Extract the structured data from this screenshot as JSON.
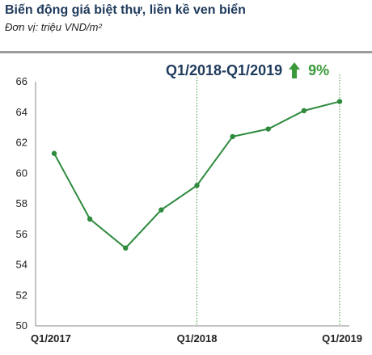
{
  "header": {
    "title": "Biến động giá biệt thự, liền kề ven biển",
    "subtitle": "Đơn vị: triệu VND/m²"
  },
  "highlight": {
    "period": "Q1/2018-Q1/2019",
    "change": "9%",
    "icon": "up-arrow-icon",
    "color": "#3a9a3a"
  },
  "chart_data": {
    "type": "line",
    "title": "Biến động giá biệt thự, liền kề ven biển",
    "ylabel": "",
    "xlabel": "",
    "ylim": [
      50,
      66
    ],
    "yticks": [
      50,
      52,
      54,
      56,
      58,
      60,
      62,
      64,
      66
    ],
    "x_tick_labels": [
      "Q1/2017",
      "Q1/2018",
      "Q1/2019"
    ],
    "x_tick_indices": [
      0,
      4,
      8
    ],
    "reference_lines_at": [
      4,
      8
    ],
    "grid": false,
    "series": [
      {
        "color": "#2e8b3e",
        "values": [
          61.3,
          57.0,
          55.1,
          57.6,
          59.2,
          62.4,
          62.9,
          64.1,
          64.7
        ]
      }
    ]
  }
}
